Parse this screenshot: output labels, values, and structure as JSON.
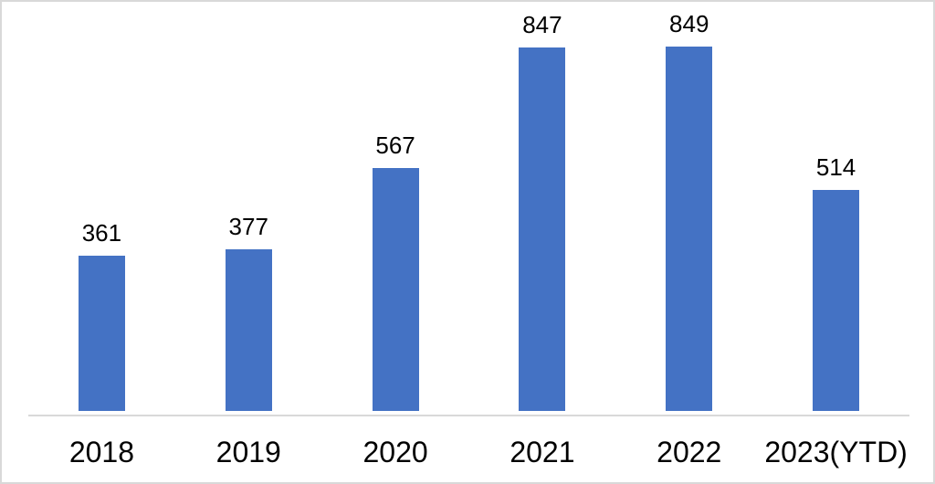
{
  "chart_data": {
    "type": "bar",
    "categories": [
      "2018",
      "2019",
      "2020",
      "2021",
      "2022",
      "2023(YTD)"
    ],
    "values": [
      361,
      377,
      567,
      847,
      849,
      514
    ],
    "data_labels": [
      "361",
      "377",
      "567",
      "847",
      "849",
      "514"
    ],
    "title": "",
    "xlabel": "",
    "ylabel": "",
    "ylim": [
      0,
      900
    ],
    "gridlines": false,
    "legend_position": "none",
    "bar_color": "#4472C4",
    "axis_line_color": "#D9D9D9",
    "value_label_color": "#000000",
    "category_label_color": "#000000",
    "background_color": "#FFFFFF",
    "border_color": "#D9D9D9"
  }
}
